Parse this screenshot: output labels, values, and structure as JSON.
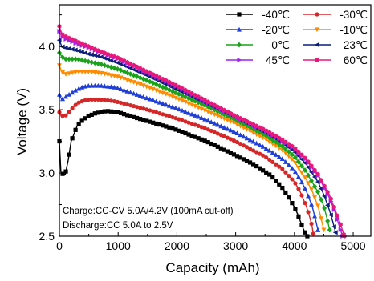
{
  "chart_data": {
    "type": "line",
    "xlabel": "Capacity (mAh)",
    "ylabel": "Voltage (V)",
    "xlim": [
      0,
      5300
    ],
    "ylim": [
      2.5,
      4.33
    ],
    "xticks": [
      0,
      1000,
      2000,
      3000,
      4000,
      5000
    ],
    "yticks": [
      2.5,
      3.0,
      3.5,
      4.0
    ],
    "xtick_labels": [
      "0",
      "1000",
      "2000",
      "3000",
      "4000",
      "5000"
    ],
    "ytick_labels": [
      "2.5",
      "3.0",
      "3.5",
      "4.0"
    ],
    "grid": false,
    "legend_position": "top-right",
    "annotations": [
      "Charge:CC-CV 5.0A/4.2V (100mA cut-off)",
      "Discharge:CC 5.0A to 2.5V"
    ],
    "series": [
      {
        "name": "-40℃",
        "color": "#000000",
        "marker": "square",
        "x": [
          0,
          25,
          60,
          100,
          150,
          200,
          300,
          400,
          500,
          600,
          700,
          800,
          1000,
          1200,
          1500,
          1800,
          2000,
          2500,
          3000,
          3300,
          3600,
          3800,
          3900,
          4000,
          4050,
          4100,
          4150,
          4200,
          4220
        ],
        "y": [
          3.25,
          3.01,
          2.99,
          2.99,
          3.1,
          3.25,
          3.37,
          3.42,
          3.45,
          3.47,
          3.48,
          3.49,
          3.48,
          3.45,
          3.41,
          3.37,
          3.34,
          3.25,
          3.14,
          3.07,
          2.98,
          2.88,
          2.81,
          2.73,
          2.68,
          2.62,
          2.56,
          2.51,
          2.5
        ]
      },
      {
        "name": "-30℃",
        "color": "#d62728",
        "marker": "circle",
        "x": [
          0,
          30,
          100,
          200,
          300,
          400,
          500,
          700,
          900,
          1000,
          1500,
          2000,
          2500,
          3000,
          3500,
          3800,
          4000,
          4100,
          4200,
          4250,
          4300,
          4320
        ],
        "y": [
          3.48,
          3.45,
          3.45,
          3.5,
          3.55,
          3.57,
          3.58,
          3.58,
          3.57,
          3.56,
          3.5,
          3.43,
          3.35,
          3.25,
          3.13,
          3.03,
          2.93,
          2.85,
          2.74,
          2.67,
          2.58,
          2.52
        ]
      },
      {
        "name": "-20℃",
        "color": "#1f3fd6",
        "marker": "triangle",
        "x": [
          0,
          40,
          100,
          200,
          300,
          400,
          500,
          700,
          900,
          1000,
          1500,
          2000,
          2500,
          3000,
          3500,
          3800,
          4000,
          4100,
          4200,
          4300,
          4350,
          4400
        ],
        "y": [
          3.62,
          3.58,
          3.6,
          3.63,
          3.66,
          3.68,
          3.69,
          3.69,
          3.68,
          3.67,
          3.59,
          3.51,
          3.42,
          3.32,
          3.2,
          3.11,
          3.02,
          2.95,
          2.86,
          2.74,
          2.65,
          2.55
        ]
      },
      {
        "name": "-10℃",
        "color": "#ff8c00",
        "marker": "triangle-down",
        "x": [
          0,
          40,
          100,
          200,
          300,
          400,
          500,
          700,
          1000,
          1500,
          2000,
          2500,
          3000,
          3500,
          3800,
          4000,
          4200,
          4300,
          4400,
          4450,
          4500
        ],
        "y": [
          3.85,
          3.8,
          3.78,
          3.79,
          3.8,
          3.8,
          3.8,
          3.79,
          3.76,
          3.68,
          3.59,
          3.49,
          3.39,
          3.27,
          3.18,
          3.09,
          2.95,
          2.86,
          2.74,
          2.65,
          2.55
        ]
      },
      {
        "name": "0℃",
        "color": "#1aa31a",
        "marker": "diamond",
        "x": [
          0,
          40,
          100,
          200,
          300,
          400,
          500,
          700,
          1000,
          1500,
          2000,
          2500,
          3000,
          3500,
          3800,
          4000,
          4200,
          4400,
          4500,
          4550,
          4600
        ],
        "y": [
          3.95,
          3.92,
          3.9,
          3.9,
          3.9,
          3.89,
          3.88,
          3.86,
          3.82,
          3.73,
          3.63,
          3.53,
          3.42,
          3.3,
          3.21,
          3.13,
          3.01,
          2.85,
          2.74,
          2.65,
          2.55
        ]
      },
      {
        "name": "23℃",
        "color": "#0b1f7a",
        "marker": "triangle-left",
        "x": [
          0,
          40,
          100,
          200,
          300,
          500,
          700,
          1000,
          1500,
          2000,
          2500,
          3000,
          3500,
          3800,
          4000,
          4200,
          4400,
          4500,
          4600,
          4650,
          4700
        ],
        "y": [
          4.05,
          4.0,
          3.99,
          3.98,
          3.97,
          3.94,
          3.92,
          3.87,
          3.77,
          3.66,
          3.55,
          3.44,
          3.32,
          3.24,
          3.17,
          3.07,
          2.93,
          2.83,
          2.7,
          2.62,
          2.53
        ]
      },
      {
        "name": "45℃",
        "color": "#a020f0",
        "marker": "triangle-right",
        "x": [
          0,
          40,
          100,
          200,
          300,
          500,
          700,
          1000,
          1500,
          2000,
          2500,
          3000,
          3500,
          3800,
          4000,
          4200,
          4400,
          4600,
          4700,
          4750,
          4820
        ],
        "y": [
          4.12,
          4.08,
          4.06,
          4.04,
          4.02,
          3.99,
          3.95,
          3.9,
          3.79,
          3.68,
          3.56,
          3.44,
          3.33,
          3.25,
          3.19,
          3.1,
          2.98,
          2.8,
          2.68,
          2.6,
          2.5
        ]
      },
      {
        "name": "60℃",
        "color": "#e8187a",
        "marker": "hexagon",
        "x": [
          0,
          40,
          100,
          200,
          300,
          500,
          700,
          1000,
          1500,
          2000,
          2500,
          3000,
          3500,
          3800,
          4000,
          4200,
          4400,
          4600,
          4700,
          4780,
          4850
        ],
        "y": [
          4.16,
          4.1,
          4.08,
          4.06,
          4.04,
          4.0,
          3.96,
          3.91,
          3.8,
          3.69,
          3.57,
          3.45,
          3.34,
          3.26,
          3.2,
          3.11,
          2.99,
          2.82,
          2.7,
          2.6,
          2.5
        ]
      }
    ]
  }
}
